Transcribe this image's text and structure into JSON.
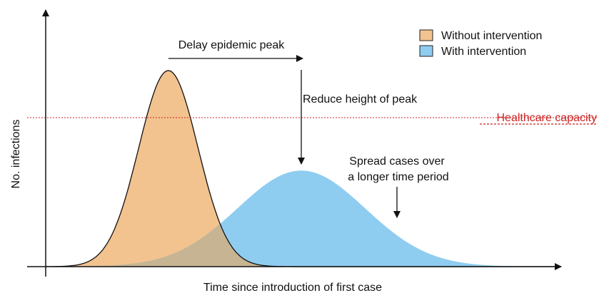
{
  "chart_data": {
    "type": "area",
    "xlabel": "Time since introduction of first case",
    "ylabel": "No. infections",
    "xlim": [
      0,
      100
    ],
    "ylim": [
      0,
      100
    ],
    "series": [
      {
        "name": "Without intervention",
        "color": "#f2c38f",
        "peak_x": 24,
        "peak_y": 100,
        "spread": 5.8
      },
      {
        "name": "With intervention",
        "color": "#8fcdf0",
        "peak_x": 50,
        "peak_y": 49,
        "spread": 12.5
      }
    ],
    "overlap_color": "#c7b492",
    "healthcare_capacity": {
      "label": "Healthcare capacity",
      "value": 76,
      "color": "#cc2222"
    },
    "annotations": [
      {
        "id": "delay",
        "text": "Delay epidemic peak"
      },
      {
        "id": "reduce",
        "text": "Reduce height of peak"
      },
      {
        "id": "spread",
        "lines": [
          "Spread cases over",
          "a longer time period"
        ]
      }
    ],
    "legend_position": "top-right",
    "grid": false
  }
}
